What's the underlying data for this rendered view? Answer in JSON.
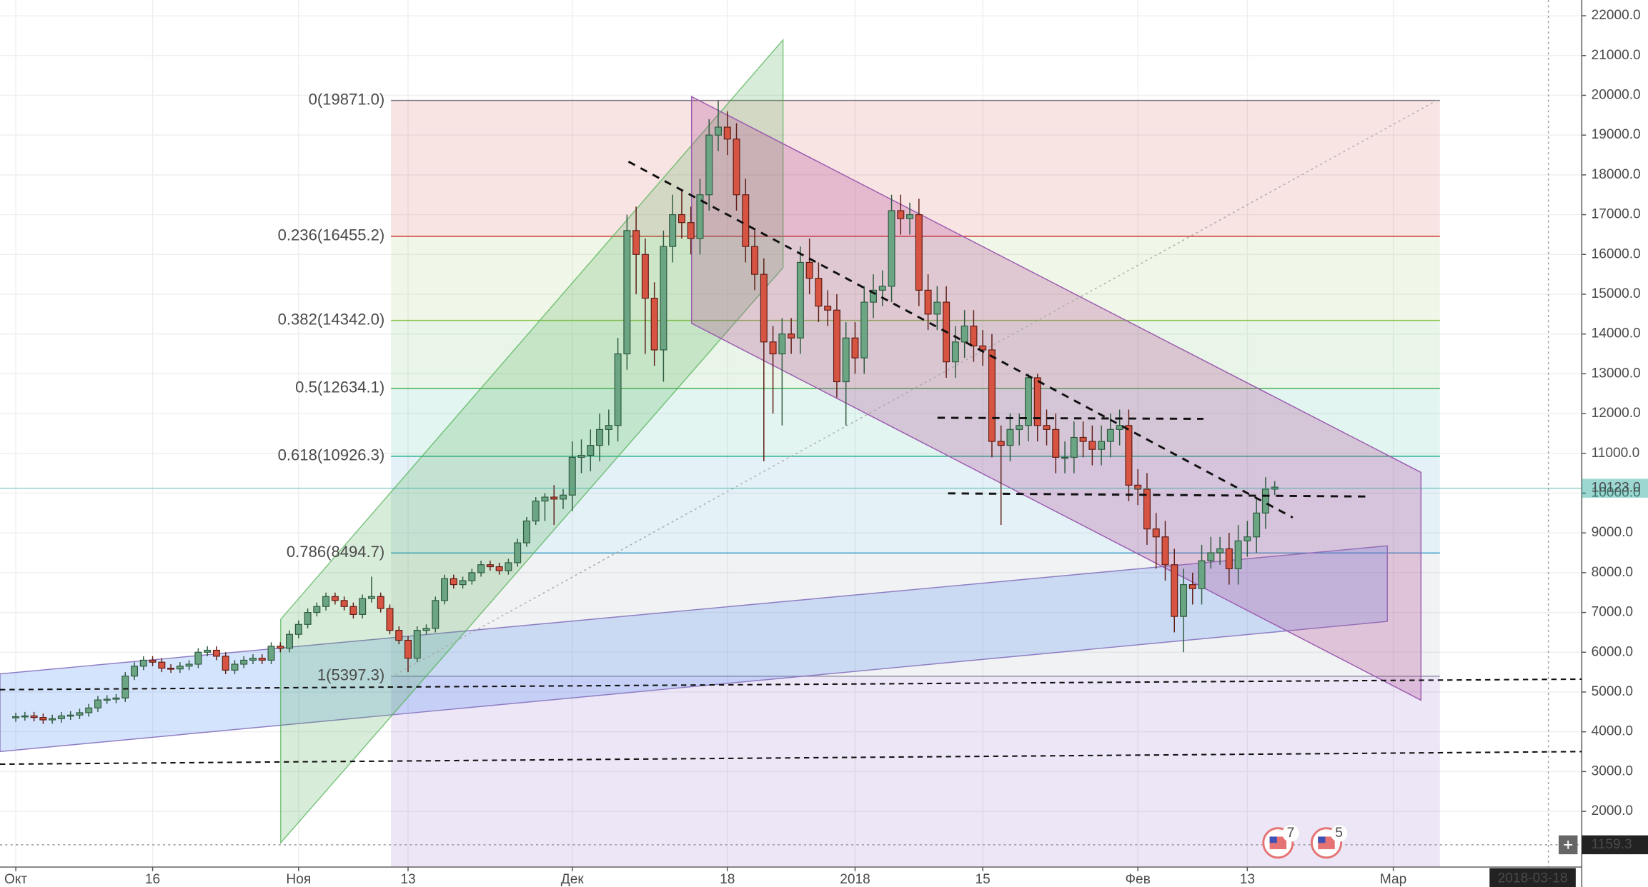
{
  "chart_data": {
    "type": "candlestick",
    "xlim": [
      -1.73,
      171.66
    ],
    "ylim": [
      600,
      22396
    ],
    "xticks": [
      {
        "value": 0,
        "label": "Окт"
      },
      {
        "value": 15,
        "label": "16"
      },
      {
        "value": 31,
        "label": "Ноя"
      },
      {
        "value": 43,
        "label": "13"
      },
      {
        "value": 61,
        "label": "Дек"
      },
      {
        "value": 78,
        "label": "18"
      },
      {
        "value": 92,
        "label": "2018"
      },
      {
        "value": 106,
        "label": "15"
      },
      {
        "value": 123,
        "label": "Фев"
      },
      {
        "value": 135,
        "label": "13"
      },
      {
        "value": 151,
        "label": "Мар"
      }
    ],
    "yticks": [
      {
        "value": 2000,
        "label": "2000.0"
      },
      {
        "value": 3000,
        "label": "3000.0"
      },
      {
        "value": 4000,
        "label": "4000.0"
      },
      {
        "value": 5000,
        "label": "5000.0"
      },
      {
        "value": 6000,
        "label": "6000.0"
      },
      {
        "value": 7000,
        "label": "7000.0"
      },
      {
        "value": 8000,
        "label": "8000.0"
      },
      {
        "value": 9000,
        "label": "9000.0"
      },
      {
        "value": 10000,
        "label": "10000.0"
      },
      {
        "value": 11000,
        "label": "11000.0"
      },
      {
        "value": 12000,
        "label": "12000.0"
      },
      {
        "value": 13000,
        "label": "13000.0"
      },
      {
        "value": 14000,
        "label": "14000.0"
      },
      {
        "value": 15000,
        "label": "15000.0"
      },
      {
        "value": 16000,
        "label": "16000.0"
      },
      {
        "value": 17000,
        "label": "17000.0"
      },
      {
        "value": 18000,
        "label": "18000.0"
      },
      {
        "value": 19000,
        "label": "19000.0"
      },
      {
        "value": 20000,
        "label": "20000.0"
      },
      {
        "value": 21000,
        "label": "21000.0"
      },
      {
        "value": 22000,
        "label": "22000.0"
      }
    ],
    "grid": true,
    "up_color": "#6ba583",
    "down_color": "#d75442",
    "candles": {
      "open": [
        4350,
        4380,
        4400,
        4360,
        4300,
        4330,
        4400,
        4420,
        4480,
        4600,
        4800,
        4820,
        4850,
        5400,
        5650,
        5800,
        5750,
        5600,
        5580,
        5650,
        5700,
        6000,
        6050,
        5900,
        5550,
        5700,
        5800,
        5850,
        5800,
        6150,
        6100,
        6450,
        6700,
        7000,
        7150,
        7400,
        7300,
        7150,
        6950,
        7350,
        7400,
        7100,
        6550,
        6300,
        5850,
        6550,
        6600,
        7300,
        7850,
        7700,
        7800,
        8000,
        8200,
        8150,
        8050,
        8250,
        8750,
        9300,
        9800,
        9900,
        9850,
        9950,
        10900,
        10950,
        11200,
        11600,
        11700,
        13500,
        16600,
        16000,
        14900,
        13600,
        16200,
        17000,
        16800,
        16400,
        17500,
        19000,
        19200,
        18900,
        17500,
        16200,
        15500,
        13800,
        13500,
        14000,
        13900,
        15800,
        15400,
        14700,
        14600,
        12800,
        13900,
        13400,
        14800,
        15100,
        15200,
        17100,
        16900,
        17000,
        15100,
        14500,
        14800,
        13300,
        13800,
        14200,
        13700,
        13600,
        11300,
        11200,
        11600,
        11700,
        12900,
        11700,
        11600,
        10900,
        10900,
        11400,
        11300,
        11100,
        11300,
        11600,
        11700,
        10200,
        10100,
        9100,
        8900,
        8200,
        6900,
        7700,
        7600,
        8300,
        8500,
        8600,
        8100,
        8800,
        8900,
        9500,
        10100
      ],
      "high": [
        4480,
        4500,
        4500,
        4460,
        4430,
        4500,
        4520,
        4580,
        4700,
        4900,
        4920,
        4950,
        5500,
        5750,
        5900,
        5900,
        5850,
        5700,
        5750,
        5800,
        6100,
        6150,
        6150,
        6000,
        5800,
        5900,
        5950,
        5950,
        6250,
        6250,
        6550,
        6800,
        7100,
        7250,
        7500,
        7500,
        7400,
        7250,
        7450,
        7900,
        7500,
        7200,
        6650,
        6400,
        6650,
        6700,
        7400,
        7950,
        7950,
        7900,
        8100,
        8300,
        8300,
        8250,
        8350,
        8850,
        9400,
        9900,
        10000,
        10200,
        10100,
        11300,
        11350,
        11600,
        12000,
        12100,
        13900,
        17000,
        17200,
        16400,
        15300,
        16600,
        17500,
        17600,
        17200,
        17900,
        19400,
        19871,
        19600,
        19300,
        17900,
        16600,
        15900,
        14200,
        14400,
        14400,
        16200,
        16400,
        15800,
        15100,
        15000,
        14300,
        14300,
        15200,
        15500,
        15600,
        17500,
        17500,
        17300,
        17400,
        15500,
        15200,
        15200,
        14200,
        14600,
        14600,
        14100,
        14000,
        11700,
        12000,
        12000,
        13000,
        13000,
        12100,
        12000,
        11300,
        11800,
        11800,
        11700,
        11700,
        12000,
        12100,
        12100,
        10600,
        10500,
        9500,
        9300,
        8600,
        8100,
        8000,
        8700,
        8900,
        8900,
        9000,
        9200,
        9300,
        9900,
        10400,
        10300
      ],
      "low": [
        4250,
        4280,
        4260,
        4200,
        4200,
        4230,
        4300,
        4320,
        4380,
        4500,
        4700,
        4720,
        4750,
        5300,
        5550,
        5650,
        5500,
        5480,
        5480,
        5550,
        5600,
        5900,
        5800,
        5450,
        5450,
        5600,
        5700,
        5700,
        5700,
        6000,
        6000,
        6350,
        6600,
        6900,
        7050,
        7200,
        7050,
        6850,
        6850,
        7250,
        7000,
        6450,
        6200,
        5500,
        5750,
        6450,
        6500,
        7200,
        7600,
        7600,
        7700,
        7900,
        8050,
        7950,
        7950,
        8150,
        8650,
        9200,
        9300,
        9200,
        9600,
        9550,
        10500,
        10550,
        10800,
        11200,
        11300,
        13100,
        15000,
        13500,
        13200,
        12800,
        15800,
        16400,
        16000,
        16000,
        17100,
        18600,
        18500,
        17100,
        15800,
        15100,
        10800,
        12000,
        11700,
        13500,
        13500,
        15000,
        14300,
        14200,
        12400,
        11700,
        13000,
        13000,
        14400,
        14700,
        14800,
        16500,
        16500,
        14700,
        14100,
        14100,
        12900,
        12900,
        13400,
        13300,
        13200,
        10900,
        9200,
        10800,
        11200,
        11300,
        11300,
        11200,
        10500,
        10500,
        10500,
        10900,
        10700,
        10700,
        10900,
        11200,
        9800,
        9700,
        8700,
        8100,
        7800,
        6500,
        6000,
        7200,
        7200,
        8100,
        8200,
        7700,
        7700,
        8400,
        8500,
        9100,
        9950
      ],
      "close": [
        4380,
        4400,
        4360,
        4300,
        4330,
        4400,
        4420,
        4480,
        4600,
        4800,
        4820,
        4850,
        5400,
        5650,
        5800,
        5750,
        5600,
        5580,
        5650,
        5700,
        6000,
        6050,
        5900,
        5550,
        5700,
        5800,
        5850,
        5800,
        6150,
        6100,
        6450,
        6700,
        7000,
        7150,
        7400,
        7300,
        7150,
        6950,
        7350,
        7400,
        7100,
        6550,
        6300,
        5850,
        6550,
        6600,
        7300,
        7850,
        7700,
        7800,
        8000,
        8200,
        8150,
        8050,
        8250,
        8750,
        9300,
        9800,
        9900,
        9850,
        9950,
        10900,
        10950,
        11200,
        11600,
        11700,
        13500,
        16600,
        16000,
        14900,
        13600,
        16200,
        17000,
        16800,
        16400,
        17500,
        19000,
        19200,
        18900,
        17500,
        16200,
        15500,
        13800,
        13500,
        14000,
        13900,
        15800,
        15400,
        14700,
        14600,
        12800,
        13900,
        13400,
        14800,
        15100,
        15200,
        17100,
        16900,
        17000,
        15100,
        14500,
        14800,
        13300,
        13800,
        14200,
        13700,
        13600,
        11300,
        11200,
        11600,
        11700,
        12900,
        11700,
        11600,
        10900,
        10900,
        11400,
        11300,
        11100,
        11300,
        11600,
        11700,
        10200,
        10100,
        9100,
        8900,
        8200,
        6900,
        7700,
        7600,
        8300,
        8500,
        8600,
        8100,
        8800,
        8900,
        9500,
        10100,
        10150
      ]
    },
    "fib_levels": [
      {
        "label": "0(19871.0)",
        "value": 19871,
        "color": "#787b86"
      },
      {
        "label": "0.236(16455.2)",
        "value": 16455.2,
        "color": "#d32f2f"
      },
      {
        "label": "0.382(14342.0)",
        "value": 14342,
        "color": "#8bc34a"
      },
      {
        "label": "0.5(12634.1)",
        "value": 12634.1,
        "color": "#4caf50"
      },
      {
        "label": "0.618(10926.3)",
        "value": 10926.3,
        "color": "#26b38a"
      },
      {
        "label": "0.786(8494.7)",
        "value": 8494.7,
        "color": "#2b94c4"
      },
      {
        "label": "1(5397.3)",
        "value": 5397.3,
        "color": "#9598a1"
      }
    ],
    "last_price": {
      "value": 10123,
      "label": "10123.0",
      "color": "#26a69a"
    },
    "crosshair": {
      "x": 168,
      "x_label": "2018-03-18",
      "y": 1159.3
    },
    "events": [
      7,
      5
    ]
  }
}
